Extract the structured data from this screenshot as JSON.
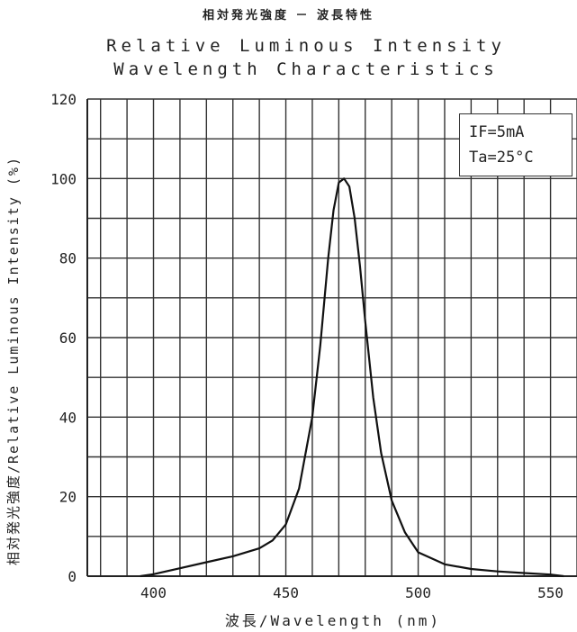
{
  "chart_data": {
    "type": "line",
    "title_jp": "相対発光強度 － 波長特性",
    "title_line1": "Relative Luminous Intensity",
    "title_line2": "Wavelength Characteristics",
    "ylabel": "相対発光強度/Relative Luminous Intensity (%)",
    "xlabel": "波長/Wavelength   (nm)",
    "xlim": [
      375,
      560
    ],
    "ylim": [
      0,
      120
    ],
    "xticks": [
      400,
      450,
      500,
      550
    ],
    "yticks": [
      0,
      20,
      40,
      60,
      80,
      100,
      120
    ],
    "grid": true,
    "legend_position": "top-right",
    "conditions": [
      "IF=5mA",
      "Ta=25°C"
    ],
    "series": [
      {
        "x": [
          395,
          400,
          410,
          420,
          430,
          440,
          445,
          450,
          455,
          460,
          463,
          466,
          468,
          470,
          472,
          474,
          476,
          478,
          480,
          483,
          486,
          490,
          495,
          500,
          510,
          520,
          530,
          540,
          550,
          555
        ],
        "y": [
          0,
          0.5,
          2,
          3.5,
          5,
          7,
          9,
          13,
          22,
          40,
          58,
          80,
          92,
          99,
          100,
          98,
          90,
          78,
          64,
          45,
          31,
          19,
          11,
          6,
          3,
          1.8,
          1.2,
          0.8,
          0.4,
          0
        ]
      }
    ]
  }
}
